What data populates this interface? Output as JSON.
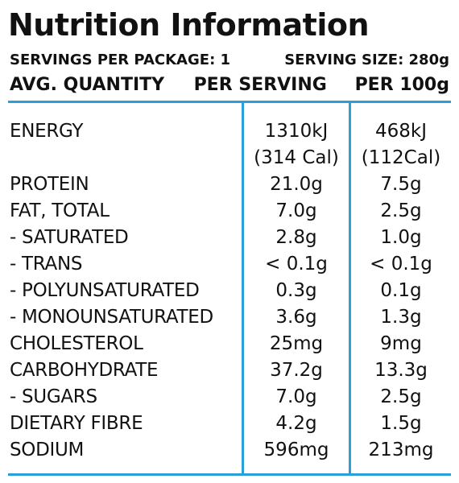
{
  "panel": {
    "title": "Nutrition Information",
    "servings_per_package": "SERVINGS PER PACKAGE: 1",
    "serving_size": "SERVING SIZE: 280g",
    "col_quantity": "AVG. QUANTITY",
    "col_per_serving": "PER SERVING",
    "col_per_100g": "PER 100g",
    "accent_color": "#2a9fd8"
  },
  "rows": [
    {
      "label": "ENERGY",
      "per_serving": "1310kJ",
      "per_serving_sub": "(314 Cal)",
      "per_100g": "468kJ",
      "per_100g_sub": "(112Cal)"
    },
    {
      "label": "PROTEIN",
      "per_serving": "21.0g",
      "per_100g": "7.5g"
    },
    {
      "label": "FAT, TOTAL",
      "per_serving": "7.0g",
      "per_100g": "2.5g"
    },
    {
      "label": "- SATURATED",
      "per_serving": "2.8g",
      "per_100g": "1.0g"
    },
    {
      "label": "- TRANS",
      "per_serving": "< 0.1g",
      "per_100g": "< 0.1g"
    },
    {
      "label": "- POLYUNSATURATED",
      "per_serving": "0.3g",
      "per_100g": "0.1g"
    },
    {
      "label": "- MONOUNSATURATED",
      "per_serving": "3.6g",
      "per_100g": "1.3g"
    },
    {
      "label": "CHOLESTEROL",
      "per_serving": "25mg",
      "per_100g": "9mg"
    },
    {
      "label": "CARBOHYDRATE",
      "per_serving": "37.2g",
      "per_100g": "13.3g"
    },
    {
      "label": "- SUGARS",
      "per_serving": "7.0g",
      "per_100g": "2.5g"
    },
    {
      "label": "DIETARY FIBRE",
      "per_serving": "4.2g",
      "per_100g": "1.5g"
    },
    {
      "label": "SODIUM",
      "per_serving": "596mg",
      "per_100g": "213mg"
    }
  ]
}
